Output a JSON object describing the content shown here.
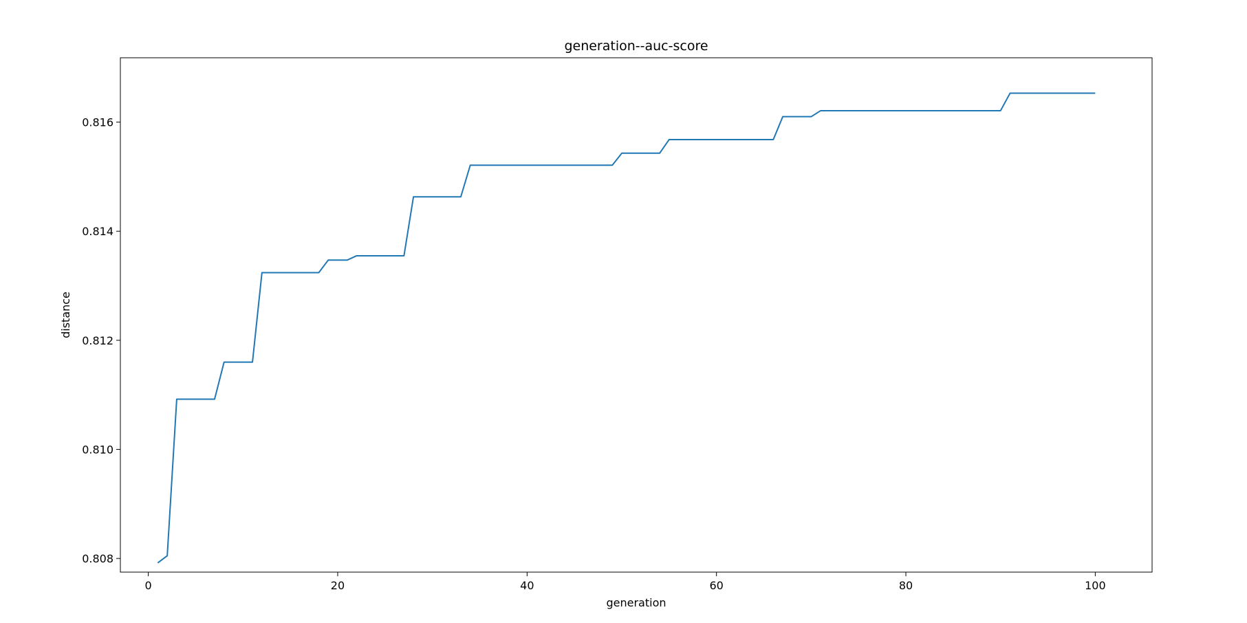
{
  "chart_data": {
    "type": "line",
    "title": "generation--auc-score",
    "xlabel": "generation",
    "ylabel": "distance",
    "xlim": [
      -2.95,
      106.0
    ],
    "ylim": [
      0.80775,
      0.81718
    ],
    "xticks": [
      0,
      20,
      40,
      60,
      80,
      100
    ],
    "xtick_labels": [
      "0",
      "20",
      "40",
      "60",
      "80",
      "100"
    ],
    "yticks": [
      0.808,
      0.81,
      0.812,
      0.814,
      0.816
    ],
    "ytick_labels": [
      "0.808",
      "0.810",
      "0.812",
      "0.814",
      "0.816"
    ],
    "grid": false,
    "legend": false,
    "series": [
      {
        "color": "#1f77b4",
        "x": [
          1,
          2,
          3,
          4,
          5,
          6,
          7,
          8,
          9,
          10,
          11,
          12,
          13,
          14,
          15,
          16,
          17,
          18,
          19,
          20,
          21,
          22,
          23,
          24,
          25,
          26,
          27,
          28,
          29,
          30,
          31,
          32,
          33,
          34,
          35,
          36,
          37,
          38,
          39,
          40,
          41,
          42,
          43,
          44,
          45,
          46,
          47,
          48,
          49,
          50,
          51,
          52,
          53,
          54,
          55,
          56,
          57,
          58,
          59,
          60,
          61,
          62,
          63,
          64,
          65,
          66,
          67,
          68,
          69,
          70,
          71,
          72,
          73,
          74,
          75,
          76,
          77,
          78,
          79,
          80,
          81,
          82,
          83,
          84,
          85,
          86,
          87,
          88,
          89,
          90,
          91,
          92,
          93,
          94,
          95,
          96,
          97,
          98,
          99,
          100
        ],
        "y": [
          0.80792,
          0.80805,
          0.81092,
          0.81092,
          0.81092,
          0.81092,
          0.81092,
          0.8116,
          0.8116,
          0.8116,
          0.8116,
          0.81324,
          0.81324,
          0.81324,
          0.81324,
          0.81324,
          0.81324,
          0.81324,
          0.81347,
          0.81347,
          0.81347,
          0.81355,
          0.81355,
          0.81355,
          0.81355,
          0.81355,
          0.81355,
          0.81463,
          0.81463,
          0.81463,
          0.81463,
          0.81463,
          0.81463,
          0.81521,
          0.81521,
          0.81521,
          0.81521,
          0.81521,
          0.81521,
          0.81521,
          0.81521,
          0.81521,
          0.81521,
          0.81521,
          0.81521,
          0.81521,
          0.81521,
          0.81521,
          0.81521,
          0.81543,
          0.81543,
          0.81543,
          0.81543,
          0.81543,
          0.81568,
          0.81568,
          0.81568,
          0.81568,
          0.81568,
          0.81568,
          0.81568,
          0.81568,
          0.81568,
          0.81568,
          0.81568,
          0.81568,
          0.8161,
          0.8161,
          0.8161,
          0.8161,
          0.81621,
          0.81621,
          0.81621,
          0.81621,
          0.81621,
          0.81621,
          0.81621,
          0.81621,
          0.81621,
          0.81621,
          0.81621,
          0.81621,
          0.81621,
          0.81621,
          0.81621,
          0.81621,
          0.81621,
          0.81621,
          0.81621,
          0.81621,
          0.81653,
          0.81653,
          0.81653,
          0.81653,
          0.81653,
          0.81653,
          0.81653,
          0.81653,
          0.81653,
          0.81653
        ]
      }
    ]
  }
}
